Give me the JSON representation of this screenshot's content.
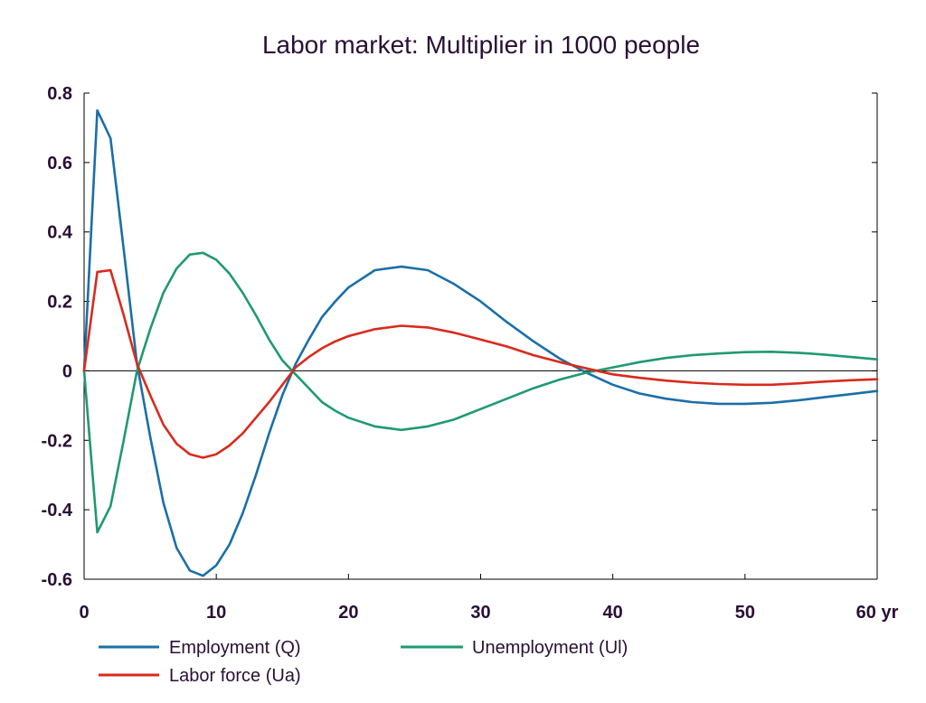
{
  "chart_data": {
    "type": "line",
    "title": "Labor market: Multiplier in 1000 people",
    "xlabel": "",
    "ylabel": "",
    "x_unit_label": "60 yr",
    "xlim": [
      0,
      60
    ],
    "ylim": [
      -0.6,
      0.8
    ],
    "x_ticks": [
      0,
      10,
      20,
      30,
      40,
      50,
      60
    ],
    "x_tick_labels": [
      "0",
      "10",
      "20",
      "30",
      "40",
      "50",
      "60 yr"
    ],
    "y_ticks": [
      0.8,
      0.6,
      0.4,
      0.2,
      0,
      -0.2,
      -0.4,
      -0.6
    ],
    "y_tick_labels": [
      "0.8",
      "0.6",
      "0.4",
      "0.2",
      "0",
      "-0.2",
      "-0.4",
      "-0.6"
    ],
    "grid": false,
    "legend_position": "bottom",
    "series": [
      {
        "name": "Employment (Q)",
        "color": "#1a6fa8",
        "x": [
          0,
          1,
          2,
          3,
          4,
          5,
          6,
          7,
          8,
          9,
          10,
          11,
          12,
          13,
          14,
          15,
          16,
          17,
          18,
          19,
          20,
          22,
          24,
          26,
          28,
          30,
          32,
          34,
          36,
          38,
          40,
          42,
          44,
          46,
          48,
          50,
          52,
          54,
          56,
          58,
          60
        ],
        "values": [
          0,
          0.75,
          0.67,
          0.35,
          0.02,
          -0.19,
          -0.38,
          -0.51,
          -0.575,
          -0.59,
          -0.56,
          -0.5,
          -0.41,
          -0.3,
          -0.18,
          -0.07,
          0.02,
          0.09,
          0.155,
          0.2,
          0.24,
          0.29,
          0.3,
          0.29,
          0.25,
          0.2,
          0.14,
          0.085,
          0.035,
          -0.005,
          -0.04,
          -0.065,
          -0.08,
          -0.09,
          -0.095,
          -0.095,
          -0.092,
          -0.085,
          -0.076,
          -0.067,
          -0.058
        ]
      },
      {
        "name": "Unemployment (Ul)",
        "color": "#1f9a6e",
        "x": [
          0,
          1,
          2,
          3,
          4,
          5,
          6,
          7,
          8,
          9,
          10,
          11,
          12,
          13,
          14,
          15,
          16,
          17,
          18,
          19,
          20,
          22,
          24,
          26,
          28,
          30,
          32,
          34,
          36,
          38,
          40,
          42,
          44,
          46,
          48,
          50,
          52,
          54,
          56,
          58,
          60
        ],
        "values": [
          0,
          -0.465,
          -0.39,
          -0.2,
          0.0,
          0.12,
          0.225,
          0.295,
          0.335,
          0.34,
          0.32,
          0.28,
          0.225,
          0.16,
          0.09,
          0.03,
          -0.01,
          -0.05,
          -0.09,
          -0.115,
          -0.135,
          -0.16,
          -0.17,
          -0.16,
          -0.14,
          -0.11,
          -0.08,
          -0.05,
          -0.025,
          -0.005,
          0.01,
          0.025,
          0.037,
          0.045,
          0.05,
          0.054,
          0.055,
          0.052,
          0.047,
          0.04,
          0.033
        ]
      },
      {
        "name": "Labor force (Ua)",
        "color": "#d92a1c",
        "x": [
          0,
          1,
          2,
          3,
          4,
          5,
          6,
          7,
          8,
          9,
          10,
          11,
          12,
          13,
          14,
          15,
          16,
          17,
          18,
          19,
          20,
          22,
          24,
          26,
          28,
          30,
          32,
          34,
          36,
          38,
          40,
          42,
          44,
          46,
          48,
          50,
          52,
          54,
          56,
          58,
          60
        ],
        "values": [
          0,
          0.285,
          0.29,
          0.16,
          0.02,
          -0.07,
          -0.155,
          -0.21,
          -0.24,
          -0.25,
          -0.24,
          -0.215,
          -0.18,
          -0.135,
          -0.09,
          -0.04,
          0.01,
          0.04,
          0.065,
          0.085,
          0.1,
          0.12,
          0.13,
          0.125,
          0.11,
          0.09,
          0.07,
          0.045,
          0.025,
          0.007,
          -0.01,
          -0.02,
          -0.028,
          -0.034,
          -0.038,
          -0.04,
          -0.04,
          -0.036,
          -0.031,
          -0.027,
          -0.024
        ]
      }
    ]
  }
}
